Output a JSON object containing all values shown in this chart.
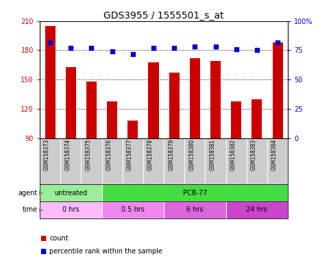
{
  "title": "GDS3955 / 1555501_s_at",
  "samples": [
    "GSM158373",
    "GSM158374",
    "GSM158375",
    "GSM158376",
    "GSM158377",
    "GSM158378",
    "GSM158379",
    "GSM158380",
    "GSM158381",
    "GSM158382",
    "GSM158383",
    "GSM158384"
  ],
  "counts": [
    205,
    163,
    148,
    128,
    108,
    168,
    157,
    172,
    169,
    128,
    130,
    188
  ],
  "percentile_ranks": [
    82,
    77,
    77,
    74,
    72,
    77,
    77,
    78,
    78,
    76,
    75,
    82
  ],
  "ylim_left": [
    90,
    210
  ],
  "ylim_right": [
    0,
    100
  ],
  "yticks_left": [
    90,
    120,
    150,
    180,
    210
  ],
  "yticks_right": [
    0,
    25,
    50,
    75,
    100
  ],
  "bar_color": "#cc0000",
  "dot_color": "#0000cc",
  "agent_groups": [
    {
      "label": "untreated",
      "start": 0,
      "end": 3,
      "color": "#99ee99"
    },
    {
      "label": "PCB-77",
      "start": 3,
      "end": 12,
      "color": "#44dd44"
    }
  ],
  "time_groups": [
    {
      "label": "0 hrs",
      "start": 0,
      "end": 3,
      "color": "#ffbbff"
    },
    {
      "label": "0.5 hrs",
      "start": 3,
      "end": 6,
      "color": "#ee88ee"
    },
    {
      "label": "6 hrs",
      "start": 6,
      "end": 9,
      "color": "#dd66dd"
    },
    {
      "label": "24 hrs",
      "start": 9,
      "end": 12,
      "color": "#cc44cc"
    }
  ],
  "tick_bg_color": "#cccccc",
  "bar_width": 0.5,
  "dot_size": 18,
  "title_fontsize": 10,
  "axis_fontsize": 7,
  "sample_fontsize": 5.5,
  "row_fontsize": 7
}
